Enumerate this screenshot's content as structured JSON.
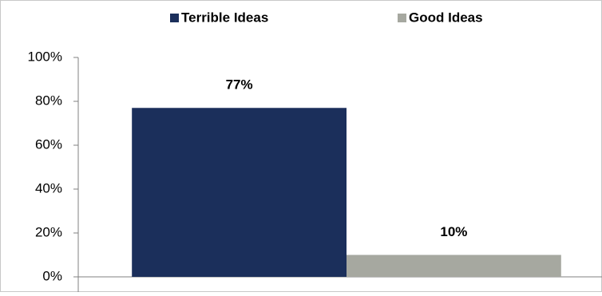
{
  "chart_data": {
    "type": "bar",
    "categories": [
      null
    ],
    "series": [
      {
        "name": "Terrible Ideas",
        "color": "#1b2f5b",
        "values": [
          77
        ],
        "value_labels": [
          "77%"
        ]
      },
      {
        "name": "Good Ideas",
        "color": "#a6a8a0",
        "values": [
          10
        ],
        "value_labels": [
          "10%"
        ]
      }
    ],
    "ylim": [
      0,
      100
    ],
    "yticks": [
      {
        "value": 0,
        "label": "0%"
      },
      {
        "value": 20,
        "label": "20%"
      },
      {
        "value": 40,
        "label": "40%"
      },
      {
        "value": 60,
        "label": "60%"
      },
      {
        "value": 80,
        "label": "80%"
      },
      {
        "value": 100,
        "label": "100%"
      }
    ],
    "legend": "top"
  }
}
